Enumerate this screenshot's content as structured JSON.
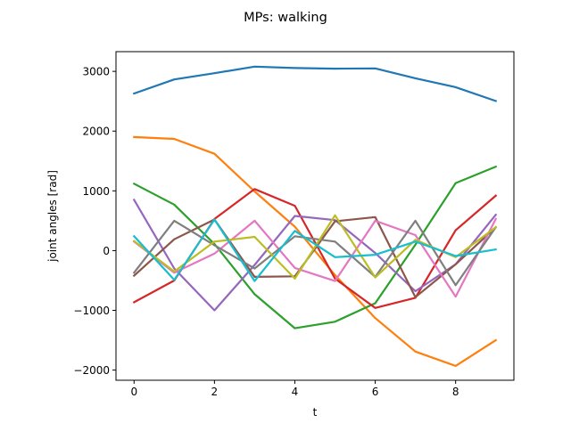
{
  "chart_data": {
    "type": "line",
    "title": "MPs: walking",
    "xlabel": "t",
    "ylabel": "joint angles [rad]",
    "xlim": [
      -0.45,
      9.45
    ],
    "ylim": [
      -2170,
      3330
    ],
    "xticks": [
      0,
      2,
      4,
      6,
      8
    ],
    "yticks": [
      -2000,
      -1000,
      0,
      1000,
      2000,
      3000
    ],
    "grid": false,
    "x": [
      0,
      1,
      2,
      3,
      4,
      5,
      6,
      7,
      8,
      9
    ],
    "series": [
      {
        "color": "#1f77b4",
        "values": [
          2630,
          2865,
          2970,
          3080,
          3055,
          3045,
          3050,
          2885,
          2735,
          2505
        ]
      },
      {
        "color": "#ff7f0e",
        "values": [
          1900,
          1870,
          1620,
          990,
          400,
          -410,
          -1130,
          -1690,
          -1930,
          -1500
        ]
      },
      {
        "color": "#2ca02c",
        "values": [
          1120,
          770,
          110,
          -730,
          -1300,
          -1190,
          -880,
          100,
          1130,
          1405
        ]
      },
      {
        "color": "#d62728",
        "values": [
          -865,
          -500,
          530,
          1030,
          750,
          -470,
          -960,
          -790,
          340,
          920
        ]
      },
      {
        "color": "#9467bd",
        "values": [
          850,
          -300,
          -1000,
          -240,
          580,
          510,
          -40,
          -680,
          -230,
          600
        ]
      },
      {
        "color": "#8c564b",
        "values": [
          -420,
          190,
          520,
          -440,
          -430,
          490,
          560,
          -780,
          -230,
          390
        ]
      },
      {
        "color": "#e377c2",
        "values": [
          150,
          -370,
          -50,
          500,
          -290,
          -510,
          500,
          260,
          -770,
          530
        ]
      },
      {
        "color": "#7f7f7f",
        "values": [
          -370,
          500,
          90,
          -300,
          240,
          150,
          -440,
          500,
          -580,
          390
        ]
      },
      {
        "color": "#bcbd22",
        "values": [
          160,
          -350,
          150,
          230,
          -470,
          590,
          -450,
          180,
          -110,
          390
        ]
      },
      {
        "color": "#17becf",
        "values": [
          240,
          -490,
          520,
          -510,
          330,
          -110,
          -70,
          150,
          -90,
          20
        ]
      }
    ]
  }
}
